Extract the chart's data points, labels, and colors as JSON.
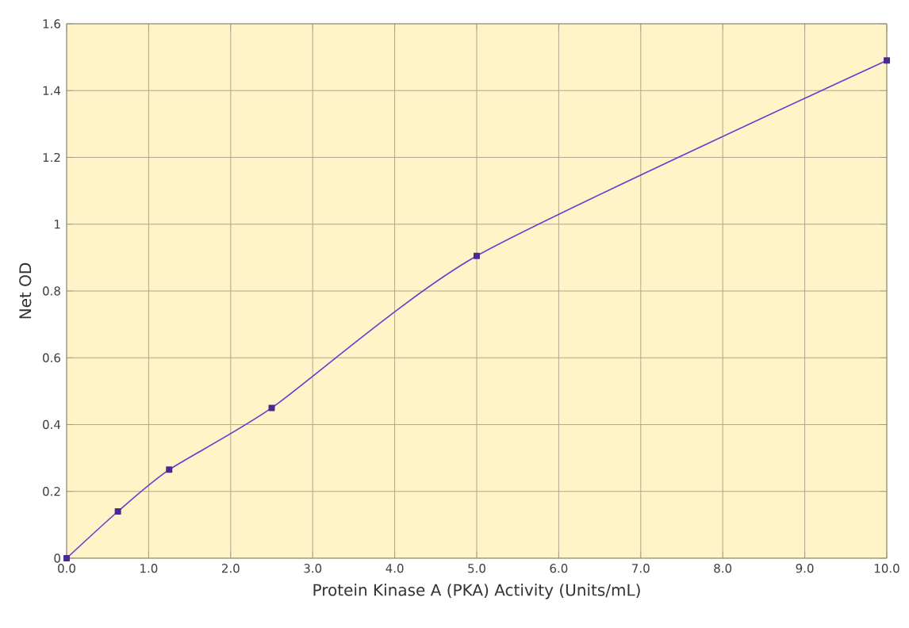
{
  "chart_data": {
    "type": "line",
    "xlabel": "Protein Kinase A (PKA) Activity (Units/mL)",
    "ylabel": "Net OD",
    "x": [
      0,
      0.625,
      1.25,
      2.5,
      5,
      10
    ],
    "series": [
      {
        "color": "#6a3ad0",
        "values": [
          0,
          0.14,
          0.265,
          0.45,
          0.905,
          1.49
        ]
      }
    ],
    "xlim": [
      0,
      10
    ],
    "ylim": [
      0,
      1.6
    ],
    "xticks": [
      {
        "value": 0,
        "label": "0.0"
      },
      {
        "value": 1,
        "label": "1.0"
      },
      {
        "value": 2,
        "label": "2.0"
      },
      {
        "value": 3,
        "label": "3.0"
      },
      {
        "value": 4,
        "label": "4.0"
      },
      {
        "value": 5,
        "label": "5.0"
      },
      {
        "value": 6,
        "label": "6.0"
      },
      {
        "value": 7,
        "label": "7.0"
      },
      {
        "value": 8,
        "label": "8.0"
      },
      {
        "value": 9,
        "label": "9.0"
      },
      {
        "value": 10,
        "label": "10.0"
      }
    ],
    "yticks": [
      0,
      0.2,
      0.4,
      0.6,
      0.8,
      1,
      1.2,
      1.4,
      1.6
    ],
    "grid": true,
    "marker": "square",
    "line_style": "solid"
  }
}
